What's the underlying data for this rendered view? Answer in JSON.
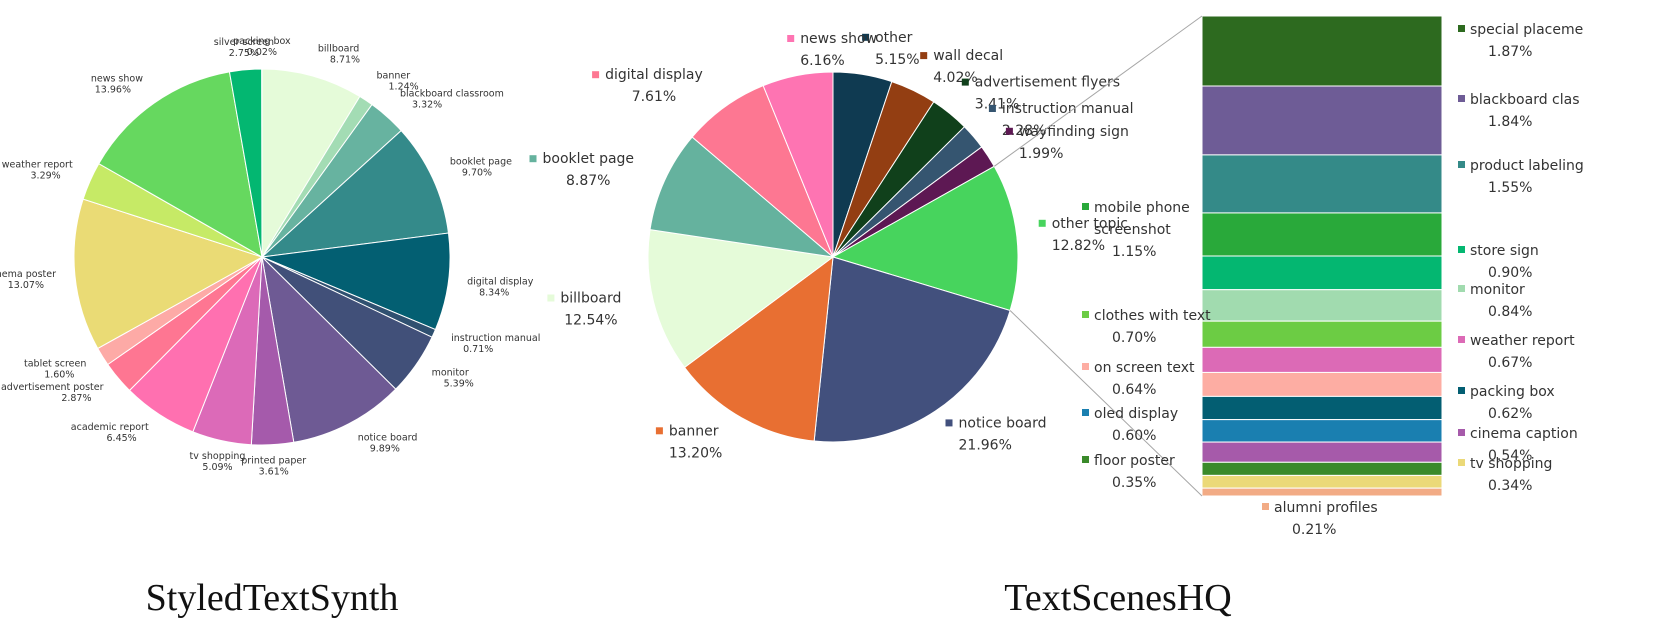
{
  "chart_data": [
    {
      "type": "pie",
      "title": "StyledTextSynth",
      "slices": [
        {
          "label": "billboard",
          "value": 8.71,
          "display": "8.71%",
          "color": "#e5fbd9"
        },
        {
          "label": "banner",
          "value": 1.24,
          "display": "1.24%",
          "color": "#a3dcb4"
        },
        {
          "label": "blackboard classroom",
          "value": 3.32,
          "display": "3.32%",
          "color": "#67b3a0"
        },
        {
          "label": "booklet page",
          "value": 9.7,
          "display": "9.70%",
          "color": "#348a8a"
        },
        {
          "label": "digital display",
          "value": 8.34,
          "display": "8.34%",
          "color": "#035f72"
        },
        {
          "label": "instruction manual",
          "value": 0.71,
          "display": "0.71%",
          "color": "#2f5070"
        },
        {
          "label": "monitor",
          "value": 5.39,
          "display": "5.39%",
          "color": "#415079"
        },
        {
          "label": "notice board",
          "value": 9.89,
          "display": "9.89%",
          "color": "#6e5a94"
        },
        {
          "label": "printed paper",
          "value": 3.61,
          "display": "3.61%",
          "color": "#a55aab"
        },
        {
          "label": "tv shopping",
          "value": 5.09,
          "display": "5.09%",
          "color": "#dc6ab8"
        },
        {
          "label": "academic report",
          "value": 6.45,
          "display": "6.45%",
          "color": "#ff70b0"
        },
        {
          "label": "advertisement poster",
          "value": 2.87,
          "display": "2.87%",
          "color": "#fe7692"
        },
        {
          "label": "tablet screen",
          "value": 1.6,
          "display": "1.60%",
          "color": "#fdaaa6"
        },
        {
          "label": "cinema poster",
          "value": 13.07,
          "display": "13.07%",
          "color": "#eadb75"
        },
        {
          "label": "weather report",
          "value": 3.29,
          "display": "3.29%",
          "color": "#c6ea66"
        },
        {
          "label": "news show",
          "value": 13.96,
          "display": "13.96%",
          "color": "#66d85f"
        },
        {
          "label": "silver screen",
          "value": 2.75,
          "display": "2.75%",
          "color": "#03b771"
        },
        {
          "label": "packing box",
          "value": 0.02,
          "display": "0.02%",
          "color": "#1f8f4f"
        }
      ]
    },
    {
      "type": "pie",
      "title": "TextScenesHQ",
      "slices": [
        {
          "label": "other",
          "value": 5.15,
          "display": "5.15%",
          "color": "#0f3a51"
        },
        {
          "label": "wall decal",
          "value": 4.02,
          "display": "4.02%",
          "color": "#933e12"
        },
        {
          "label": "advertisement flyers",
          "value": 3.41,
          "display": "3.41%",
          "color": "#10401b"
        },
        {
          "label": "instruction manual",
          "value": 2.28,
          "display": "2.28%",
          "color": "#355570"
        },
        {
          "label": "wayfinding sign",
          "value": 1.99,
          "display": "1.99%",
          "color": "#5d1853"
        },
        {
          "label": "other topic",
          "value": 12.82,
          "display": "12.82%",
          "color": "#47d45d"
        },
        {
          "label": "notice board",
          "value": 21.96,
          "display": "21.96%",
          "color": "#42507d"
        },
        {
          "label": "banner",
          "value": 13.2,
          "display": "13.20%",
          "color": "#e86f32"
        },
        {
          "label": "billboard",
          "value": 12.54,
          "display": "12.54%",
          "color": "#e5fbd9"
        },
        {
          "label": "booklet page",
          "value": 8.87,
          "display": "8.87%",
          "color": "#65b29e"
        },
        {
          "label": "digital display",
          "value": 7.61,
          "display": "7.61%",
          "color": "#fd7792"
        },
        {
          "label": "news show",
          "value": 6.16,
          "display": "6.16%",
          "color": "#fe74b2"
        }
      ],
      "breakdown": {
        "of": "other topic",
        "type": "stacked-bar",
        "segments": [
          {
            "label": "special placement",
            "label_visible": "special placeme",
            "value": 1.87,
            "display": "1.87%",
            "color": "#2d6a1f"
          },
          {
            "label": "blackboard classroom",
            "label_visible": "blackboard clas",
            "value": 1.84,
            "display": "1.84%",
            "color": "#6e5c96"
          },
          {
            "label": "product labeling",
            "label_visible": "product labeling",
            "value": 1.55,
            "display": "1.55%",
            "color": "#348a88"
          },
          {
            "label": "mobile phone screenshot",
            "label_lines": [
              "mobile phone",
              "screenshot"
            ],
            "value": 1.15,
            "display": "1.15%",
            "color": "#29a93a"
          },
          {
            "label": "store sign",
            "value": 0.9,
            "display": "0.90%",
            "color": "#04b771"
          },
          {
            "label": "monitor",
            "value": 0.84,
            "display": "0.84%",
            "color": "#a1dbaf"
          },
          {
            "label": "clothes with text",
            "value": 0.7,
            "display": "0.70%",
            "color": "#6ccc44"
          },
          {
            "label": "weather report",
            "value": 0.67,
            "display": "0.67%",
            "color": "#dc6ab6"
          },
          {
            "label": "on screen text",
            "value": 0.64,
            "display": "0.64%",
            "color": "#fdada3"
          },
          {
            "label": "packing box",
            "value": 0.62,
            "display": "0.62%",
            "color": "#035e72"
          },
          {
            "label": "oled display",
            "value": 0.6,
            "display": "0.60%",
            "color": "#1a7fb0"
          },
          {
            "label": "cinema caption",
            "value": 0.54,
            "display": "0.54%",
            "color": "#a65aaa"
          },
          {
            "label": "floor poster",
            "value": 0.35,
            "display": "0.35%",
            "color": "#3a8a2a"
          },
          {
            "label": "tv shopping",
            "value": 0.34,
            "display": "0.34%",
            "color": "#ebd978"
          },
          {
            "label": "alumni profiles",
            "value": 0.21,
            "display": "0.21%",
            "color": "#f2ab85"
          }
        ]
      }
    }
  ]
}
